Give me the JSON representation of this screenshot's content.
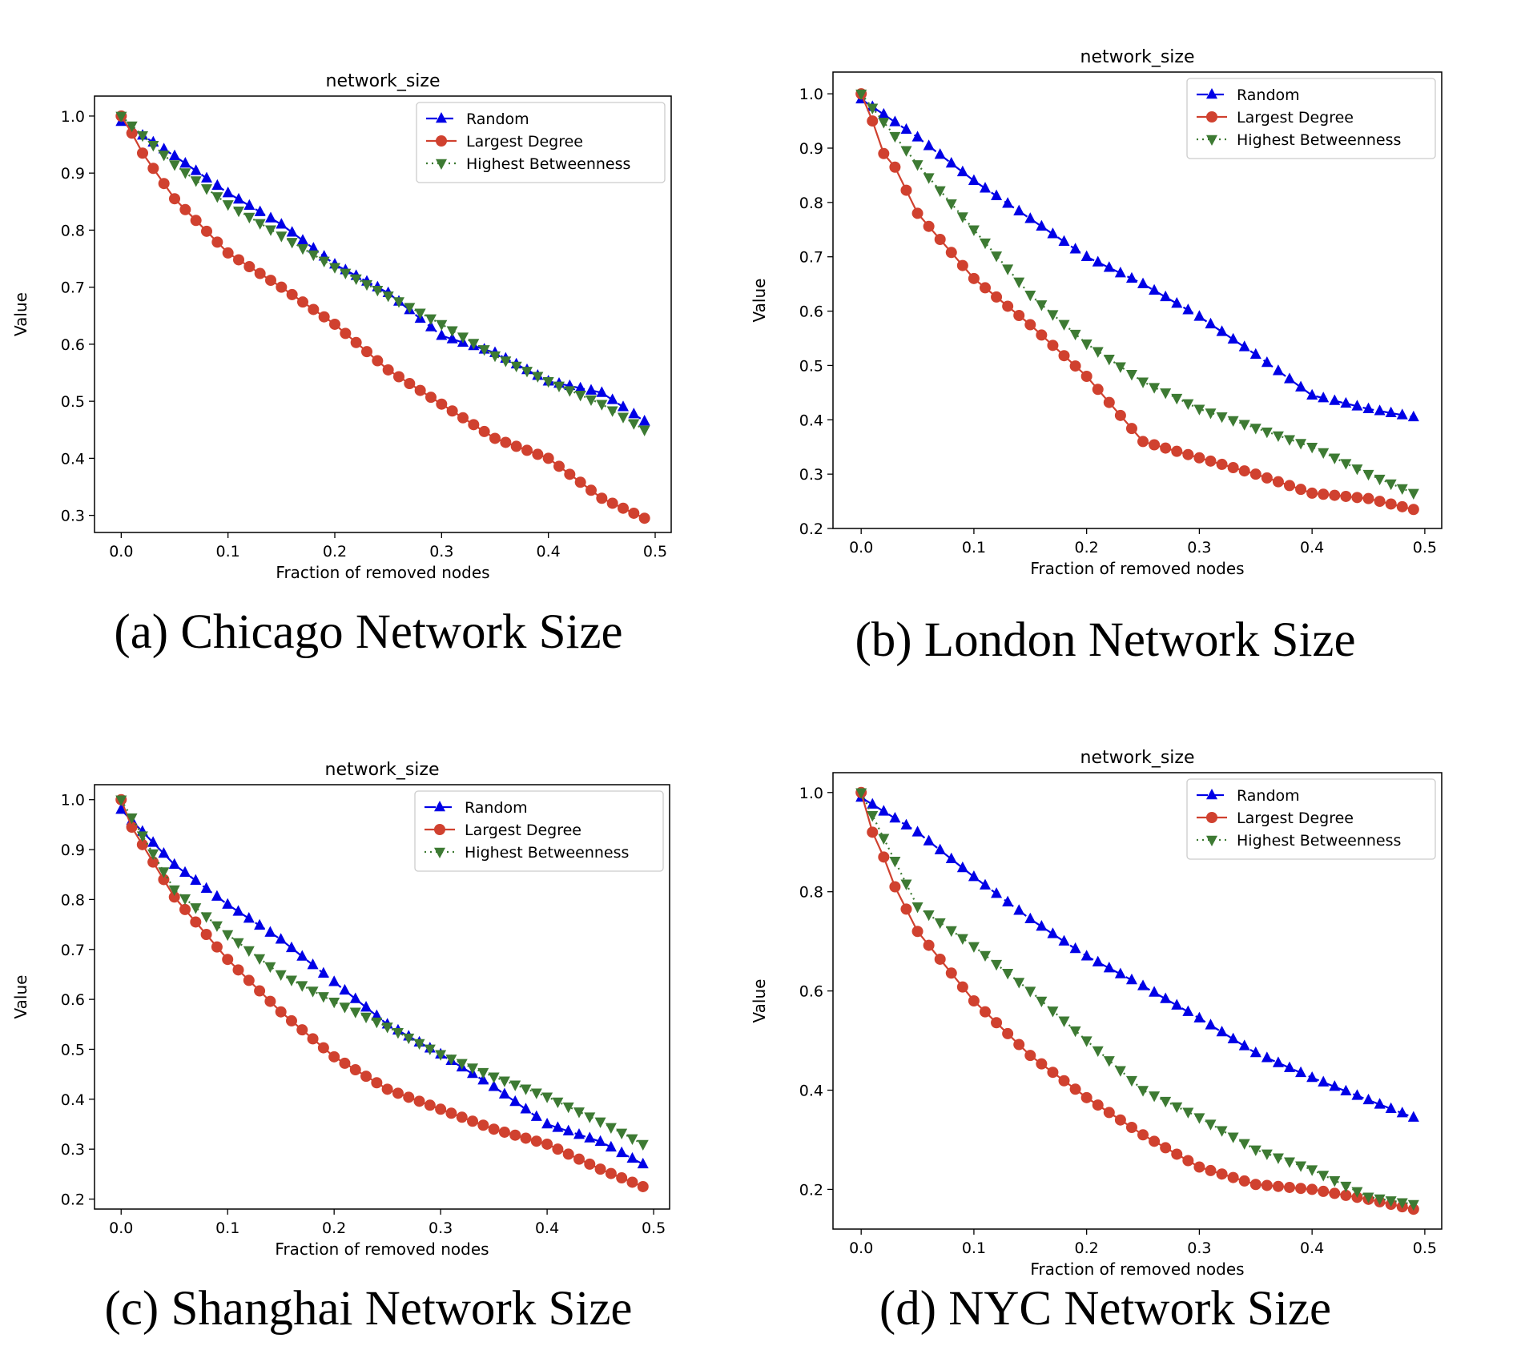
{
  "chart_data": [
    {
      "type": "line",
      "title": "network_size",
      "xlabel": "Fraction of removed nodes",
      "ylabel": "Value",
      "caption": "(a) Chicago Network Size",
      "xlim": [
        -0.025,
        0.515
      ],
      "ylim": [
        0.27,
        1.035
      ],
      "xticks": [
        "0.0",
        "0.1",
        "0.2",
        "0.3",
        "0.4",
        "0.5"
      ],
      "yticks": [
        "0.3",
        "0.4",
        "0.5",
        "0.6",
        "0.7",
        "0.8",
        "0.9",
        "1.0"
      ],
      "legend": "top-right",
      "grid": false,
      "series": [
        {
          "name": "Random",
          "color": "#0000e6",
          "marker": "triangle-up",
          "linestyle": "dashed",
          "x": [
            0.0,
            0.05,
            0.1,
            0.15,
            0.2,
            0.25,
            0.3,
            0.35,
            0.4,
            0.45,
            0.49
          ],
          "y": [
            0.99,
            0.93,
            0.865,
            0.81,
            0.74,
            0.69,
            0.615,
            0.585,
            0.535,
            0.515,
            0.465
          ]
        },
        {
          "name": "Largest Degree",
          "color": "#d0412f",
          "marker": "circle",
          "linestyle": "solid",
          "x": [
            0.0,
            0.01,
            0.02,
            0.05,
            0.1,
            0.15,
            0.2,
            0.25,
            0.3,
            0.35,
            0.4,
            0.45,
            0.49
          ],
          "y": [
            1.0,
            0.97,
            0.935,
            0.855,
            0.76,
            0.7,
            0.635,
            0.555,
            0.495,
            0.435,
            0.4,
            0.33,
            0.295
          ]
        },
        {
          "name": "Highest Betweenness",
          "color": "#3d7a33",
          "marker": "triangle-down",
          "linestyle": "dotted",
          "x": [
            0.0,
            0.05,
            0.1,
            0.15,
            0.2,
            0.25,
            0.3,
            0.35,
            0.4,
            0.45,
            0.49
          ],
          "y": [
            1.0,
            0.915,
            0.845,
            0.79,
            0.735,
            0.685,
            0.635,
            0.58,
            0.535,
            0.495,
            0.45
          ]
        }
      ]
    },
    {
      "type": "line",
      "title": "network_size",
      "xlabel": "Fraction of removed nodes",
      "ylabel": "Value",
      "caption": "(b) London Network Size",
      "xlim": [
        -0.025,
        0.515
      ],
      "ylim": [
        0.2,
        1.04
      ],
      "xticks": [
        "0.0",
        "0.1",
        "0.2",
        "0.3",
        "0.4",
        "0.5"
      ],
      "yticks": [
        "0.2",
        "0.3",
        "0.4",
        "0.5",
        "0.6",
        "0.7",
        "0.8",
        "0.9",
        "1.0"
      ],
      "legend": "top-right",
      "grid": false,
      "series": [
        {
          "name": "Random",
          "color": "#0000e6",
          "marker": "triangle-up",
          "linestyle": "dashed",
          "x": [
            0.0,
            0.05,
            0.1,
            0.15,
            0.2,
            0.25,
            0.3,
            0.35,
            0.4,
            0.45,
            0.49
          ],
          "y": [
            0.99,
            0.92,
            0.84,
            0.77,
            0.7,
            0.65,
            0.59,
            0.52,
            0.445,
            0.42,
            0.405
          ]
        },
        {
          "name": "Largest Degree",
          "color": "#d0412f",
          "marker": "circle",
          "linestyle": "solid",
          "x": [
            0.0,
            0.01,
            0.02,
            0.03,
            0.05,
            0.1,
            0.15,
            0.2,
            0.25,
            0.3,
            0.35,
            0.4,
            0.45,
            0.49
          ],
          "y": [
            1.0,
            0.95,
            0.89,
            0.865,
            0.78,
            0.66,
            0.575,
            0.48,
            0.36,
            0.33,
            0.3,
            0.265,
            0.255,
            0.235
          ]
        },
        {
          "name": "Highest Betweenness",
          "color": "#3d7a33",
          "marker": "triangle-down",
          "linestyle": "dotted",
          "x": [
            0.0,
            0.05,
            0.1,
            0.15,
            0.2,
            0.25,
            0.3,
            0.35,
            0.4,
            0.45,
            0.49
          ],
          "y": [
            1.0,
            0.87,
            0.75,
            0.63,
            0.54,
            0.47,
            0.42,
            0.385,
            0.35,
            0.3,
            0.265
          ]
        }
      ]
    },
    {
      "type": "line",
      "title": "network_size",
      "xlabel": "Fraction of removed nodes",
      "ylabel": "Value",
      "caption": "(c) Shanghai Network Size",
      "xlim": [
        -0.025,
        0.515
      ],
      "ylim": [
        0.18,
        1.03
      ],
      "xticks": [
        "0.0",
        "0.1",
        "0.2",
        "0.3",
        "0.4",
        "0.5"
      ],
      "yticks": [
        "0.2",
        "0.3",
        "0.4",
        "0.5",
        "0.6",
        "0.7",
        "0.8",
        "0.9",
        "1.0"
      ],
      "legend": "top-right",
      "grid": false,
      "series": [
        {
          "name": "Random",
          "color": "#0000e6",
          "marker": "triangle-up",
          "linestyle": "dashed",
          "x": [
            0.0,
            0.05,
            0.1,
            0.15,
            0.2,
            0.25,
            0.3,
            0.35,
            0.4,
            0.45,
            0.49
          ],
          "y": [
            0.98,
            0.87,
            0.79,
            0.72,
            0.635,
            0.55,
            0.49,
            0.425,
            0.35,
            0.315,
            0.27
          ]
        },
        {
          "name": "Largest Degree",
          "color": "#d0412f",
          "marker": "circle",
          "linestyle": "solid",
          "x": [
            0.0,
            0.01,
            0.05,
            0.1,
            0.15,
            0.2,
            0.25,
            0.3,
            0.35,
            0.4,
            0.45,
            0.49
          ],
          "y": [
            1.0,
            0.945,
            0.805,
            0.68,
            0.575,
            0.485,
            0.42,
            0.38,
            0.34,
            0.31,
            0.26,
            0.225
          ]
        },
        {
          "name": "Highest Betweenness",
          "color": "#3d7a33",
          "marker": "triangle-down",
          "linestyle": "dotted",
          "x": [
            0.0,
            0.05,
            0.1,
            0.15,
            0.2,
            0.25,
            0.3,
            0.35,
            0.4,
            0.45,
            0.49
          ],
          "y": [
            1.0,
            0.82,
            0.73,
            0.65,
            0.595,
            0.545,
            0.49,
            0.445,
            0.405,
            0.355,
            0.31
          ]
        }
      ]
    },
    {
      "type": "line",
      "title": "network_size",
      "xlabel": "Fraction of removed nodes",
      "ylabel": "Value",
      "caption": "(d) NYC Network Size",
      "xlim": [
        -0.025,
        0.515
      ],
      "ylim": [
        0.12,
        1.04
      ],
      "xticks": [
        "0.0",
        "0.1",
        "0.2",
        "0.3",
        "0.4",
        "0.5"
      ],
      "yticks": [
        "0.2",
        "0.4",
        "0.6",
        "0.8",
        "1.0"
      ],
      "legend": "top-right",
      "grid": false,
      "series": [
        {
          "name": "Random",
          "color": "#0000e6",
          "marker": "triangle-up",
          "linestyle": "dashed",
          "x": [
            0.0,
            0.05,
            0.1,
            0.15,
            0.2,
            0.25,
            0.3,
            0.35,
            0.4,
            0.45,
            0.49
          ],
          "y": [
            0.99,
            0.92,
            0.83,
            0.745,
            0.67,
            0.61,
            0.545,
            0.475,
            0.425,
            0.38,
            0.345
          ]
        },
        {
          "name": "Largest Degree",
          "color": "#d0412f",
          "marker": "circle",
          "linestyle": "solid",
          "x": [
            0.0,
            0.01,
            0.02,
            0.03,
            0.05,
            0.1,
            0.15,
            0.2,
            0.25,
            0.3,
            0.35,
            0.4,
            0.45,
            0.49
          ],
          "y": [
            1.0,
            0.92,
            0.87,
            0.81,
            0.72,
            0.58,
            0.47,
            0.385,
            0.31,
            0.245,
            0.21,
            0.2,
            0.18,
            0.16
          ]
        },
        {
          "name": "Highest Betweenness",
          "color": "#3d7a33",
          "marker": "triangle-down",
          "linestyle": "dotted",
          "x": [
            0.0,
            0.05,
            0.1,
            0.15,
            0.2,
            0.25,
            0.3,
            0.35,
            0.4,
            0.45,
            0.49
          ],
          "y": [
            1.0,
            0.77,
            0.69,
            0.6,
            0.5,
            0.4,
            0.345,
            0.28,
            0.24,
            0.185,
            0.17
          ]
        }
      ]
    }
  ]
}
